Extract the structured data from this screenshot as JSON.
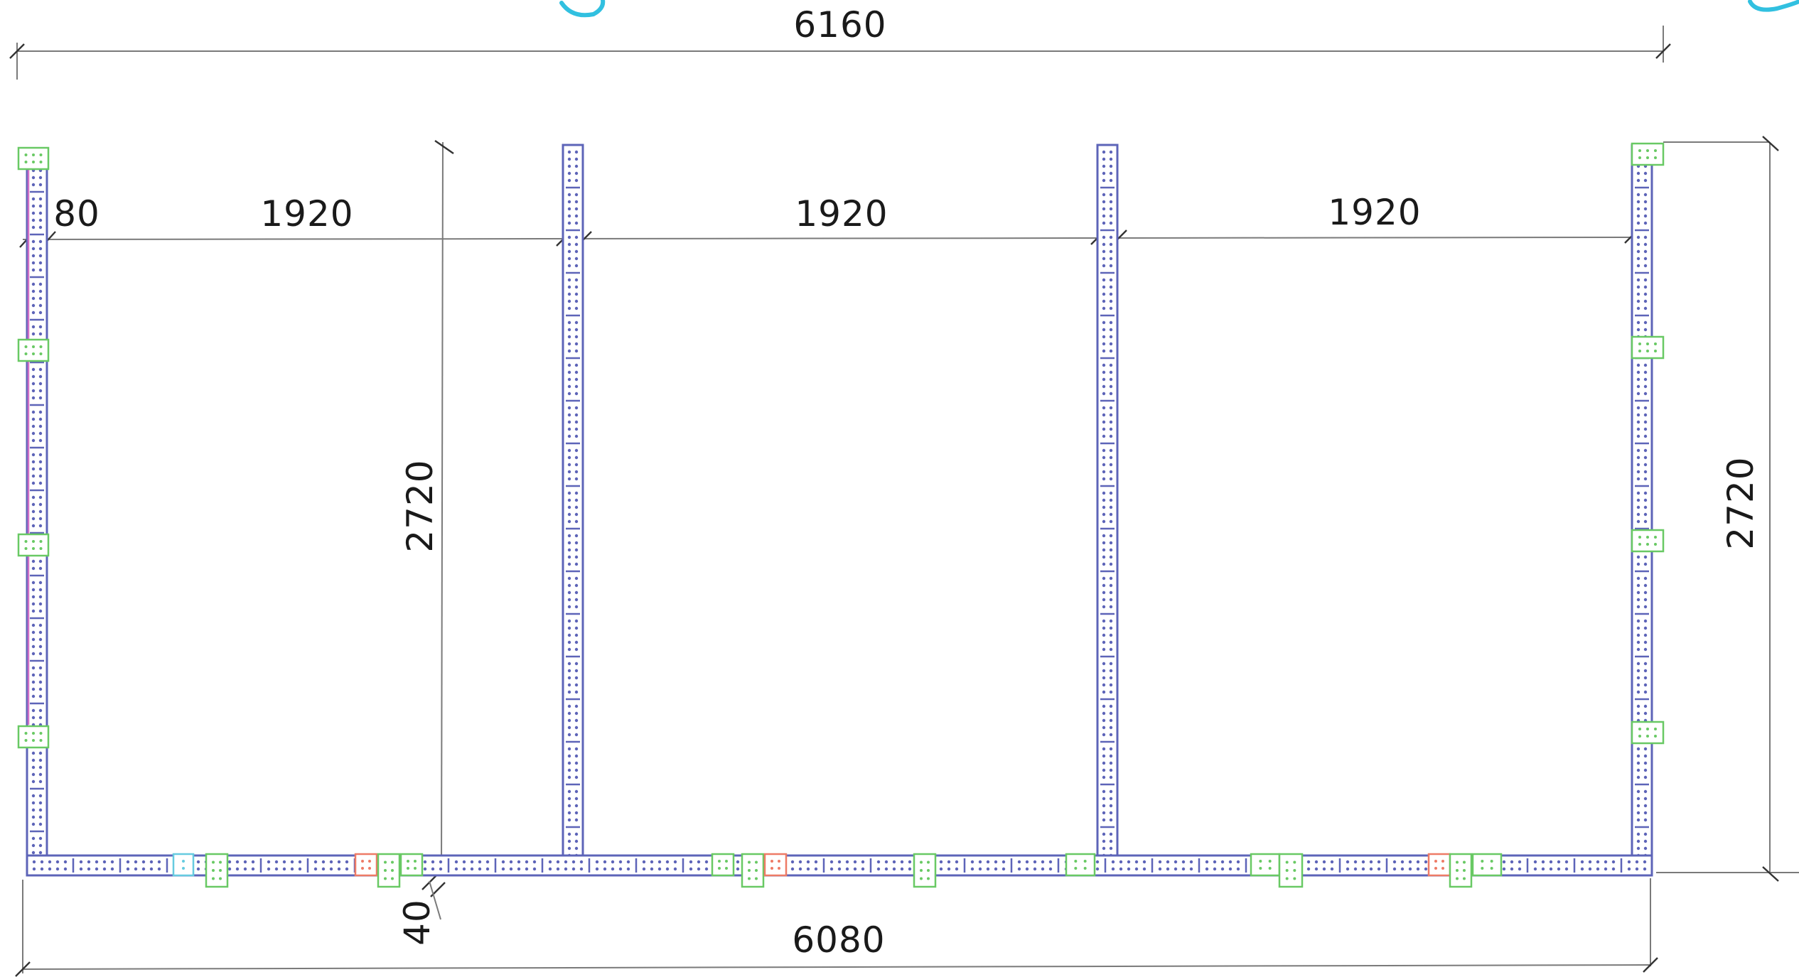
{
  "dimensions": {
    "overall_top": "6160",
    "overall_bottom": "6080",
    "left_offset": "80",
    "bay_1": "1920",
    "bay_2": "1920",
    "bay_3": "1920",
    "height_inner": "2720",
    "height_right": "2720",
    "base_gap": "40"
  },
  "colors": {
    "frame": "#5d64b8",
    "connector_green": "#69c964",
    "connector_red": "#ee7b66",
    "connector_cyan": "#66cbe0",
    "marker_magenta": "#d070c8",
    "scribble": "#31c0e0",
    "dimension_line": "#7a7a7a"
  }
}
